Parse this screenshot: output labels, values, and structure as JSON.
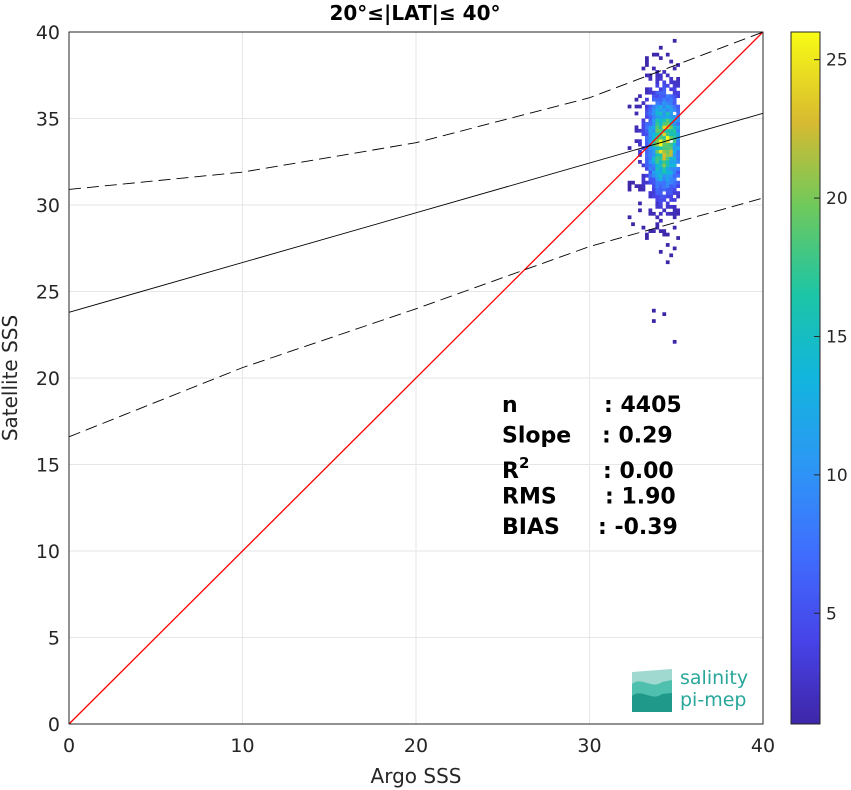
{
  "chart_data": {
    "type": "heatmap",
    "title": "20°≤|LAT|≤ 40°",
    "xlabel": "Argo SSS",
    "ylabel": "Satellite SSS",
    "xlim": [
      0,
      40
    ],
    "ylim": [
      0,
      40
    ],
    "xticks": [
      "0",
      "10",
      "20",
      "30",
      "40"
    ],
    "yticks": [
      "0",
      "5",
      "10",
      "15",
      "20",
      "25",
      "30",
      "35",
      "40"
    ],
    "grid": true,
    "colormap": "parula",
    "colorbar": {
      "min": 1,
      "max": 26,
      "ticks": [
        "5",
        "10",
        "15",
        "20",
        "25"
      ]
    },
    "density_cluster": {
      "x_center": 34.2,
      "x_spread": 0.8,
      "y_center": 33.5,
      "y_range": [
        22,
        40
      ],
      "peak_count": 26
    },
    "lines": [
      {
        "name": "",
        "kind": "identity",
        "color": "#ff0000",
        "style": "solid",
        "x": [
          0,
          40
        ],
        "y": [
          0,
          40
        ]
      },
      {
        "name": "",
        "kind": "fit",
        "color": "#000000",
        "style": "solid",
        "x": [
          0,
          40
        ],
        "y": [
          23.8,
          35.3
        ]
      },
      {
        "name": "",
        "kind": "upper-bound",
        "color": "#000000",
        "style": "dashed",
        "x": [
          0,
          10,
          20,
          30,
          40
        ],
        "y": [
          30.9,
          31.9,
          33.6,
          36.2,
          40.0
        ]
      },
      {
        "name": "",
        "kind": "lower-bound",
        "color": "#000000",
        "style": "dashed",
        "x": [
          0,
          10,
          20,
          30,
          40
        ],
        "y": [
          16.6,
          20.6,
          24.0,
          27.6,
          30.4
        ]
      }
    ],
    "stats": [
      {
        "label": "n",
        "value": ": 4405"
      },
      {
        "label": "Slope",
        "value": ": 0.29"
      },
      {
        "label": "R",
        "sup": "2",
        "value": ": 0.00"
      },
      {
        "label": "RMS",
        "value": ": 1.90"
      },
      {
        "label": "BIAS",
        "value": ": -0.39"
      }
    ]
  },
  "logo": {
    "line1": "salinity",
    "line2": "pi-mep"
  }
}
